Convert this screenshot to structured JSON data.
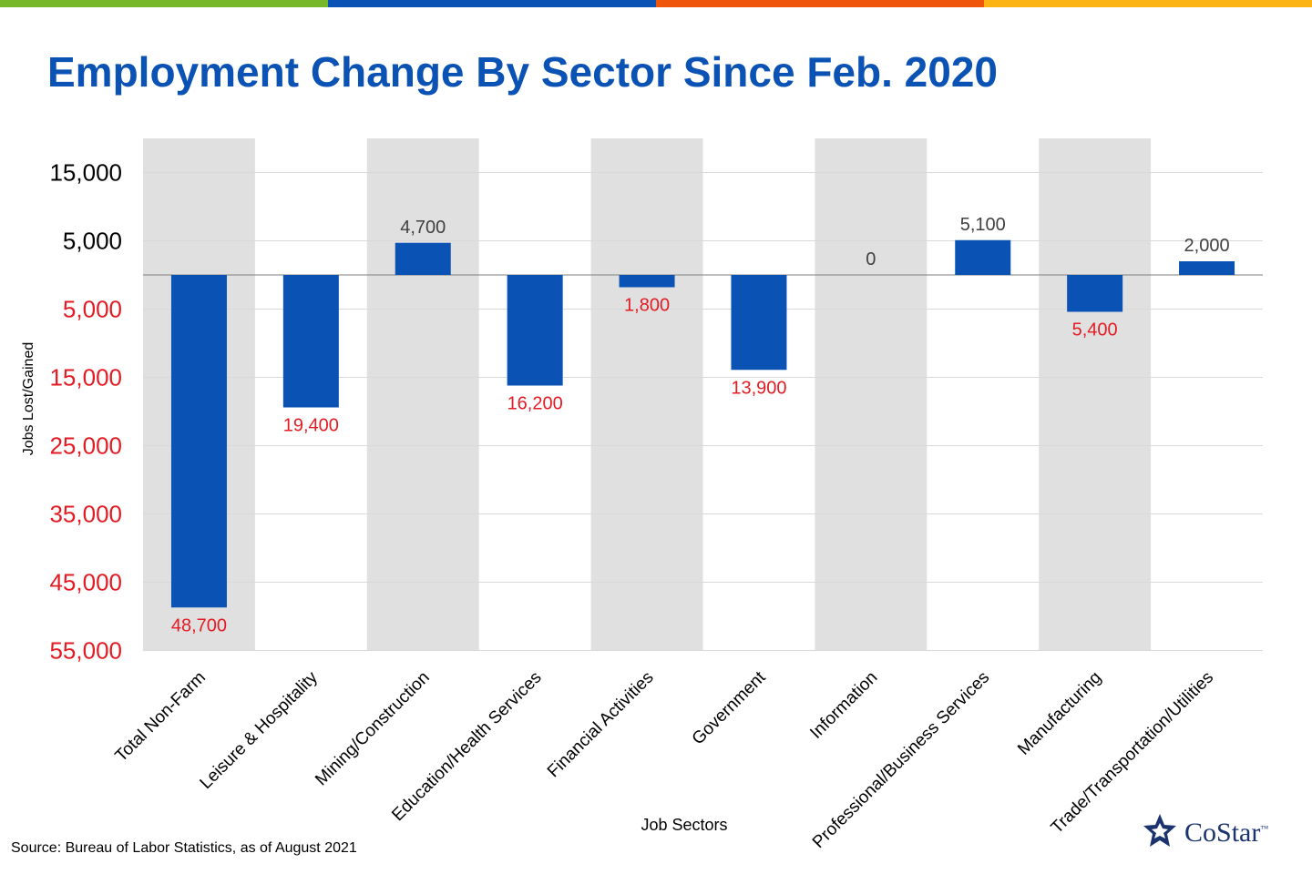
{
  "header": {
    "bar_colors": [
      "#76b82a",
      "#0a52b4",
      "#f0550c",
      "#fcb415"
    ],
    "title": "Employment Change By Sector Since Feb. 2020"
  },
  "colors": {
    "bar": "#0a52b4",
    "negative_label": "#e31b23",
    "positive_label": "#404040",
    "band": "#e0e0e0",
    "grid": "#d9d9d9"
  },
  "chart_data": {
    "type": "bar",
    "title": "Employment Change By Sector Since Feb. 2020",
    "xlabel": "Job Sectors",
    "ylabel": "Jobs Lost/Gained",
    "categories": [
      "Total Non-Farm",
      "Leisure & Hospitality",
      "Mining/Construction",
      "Education/Health Services",
      "Financial Activities",
      "Government",
      "Information",
      "Professional/Business Services",
      "Manufacturing",
      "Trade/Transportation/Utilities"
    ],
    "values": [
      -48700,
      -19400,
      4700,
      -16200,
      -1800,
      -13900,
      0,
      5100,
      -5400,
      2000
    ],
    "data_labels": [
      "48,700",
      "19,400",
      "4,700",
      "16,200",
      "1,800",
      "13,900",
      "0",
      "5,100",
      "5,400",
      "2,000"
    ],
    "yticks": [
      {
        "value": 15000,
        "label": "15,000"
      },
      {
        "value": 5000,
        "label": "5,000"
      },
      {
        "value": -5000,
        "label": "5,000"
      },
      {
        "value": -15000,
        "label": "15,000"
      },
      {
        "value": -25000,
        "label": "25,000"
      },
      {
        "value": -35000,
        "label": "35,000"
      },
      {
        "value": -45000,
        "label": "45,000"
      },
      {
        "value": -55000,
        "label": "55,000"
      }
    ],
    "ylim": [
      -55000,
      20000
    ],
    "grid": true,
    "shaded_bands": [
      0,
      2,
      4,
      6,
      8
    ]
  },
  "footer": {
    "source": "Source: Bureau of Labor Statistics, as of August 2021",
    "logo_text": "CoStar",
    "logo_tm": "™"
  }
}
